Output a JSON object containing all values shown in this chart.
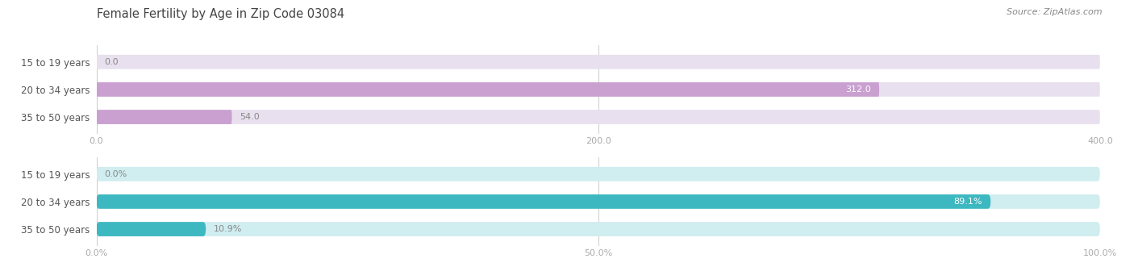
{
  "title": "Female Fertility by Age in Zip Code 03084",
  "source": "Source: ZipAtlas.com",
  "chart1": {
    "categories": [
      "15 to 19 years",
      "20 to 34 years",
      "35 to 50 years"
    ],
    "values": [
      0.0,
      312.0,
      54.0
    ],
    "xlim": [
      0,
      400
    ],
    "xticks": [
      0.0,
      200.0,
      400.0
    ],
    "bar_color": "#c9a0d0",
    "track_color": "#e8e0ee"
  },
  "chart2": {
    "categories": [
      "15 to 19 years",
      "20 to 34 years",
      "35 to 50 years"
    ],
    "values": [
      0.0,
      89.1,
      10.9
    ],
    "xlim": [
      0,
      100
    ],
    "xticks": [
      0.0,
      50.0,
      100.0
    ],
    "xtick_labels": [
      "0.0%",
      "50.0%",
      "100.0%"
    ],
    "bar_color": "#3db8c0",
    "track_color": "#d0edf0"
  },
  "bar_height": 0.52,
  "title_color": "#444444",
  "tick_color": "#aaaaaa",
  "label_fontsize": 8.0,
  "tick_fontsize": 8.0,
  "title_fontsize": 10.5,
  "source_fontsize": 8.0,
  "cat_fontsize": 8.5
}
